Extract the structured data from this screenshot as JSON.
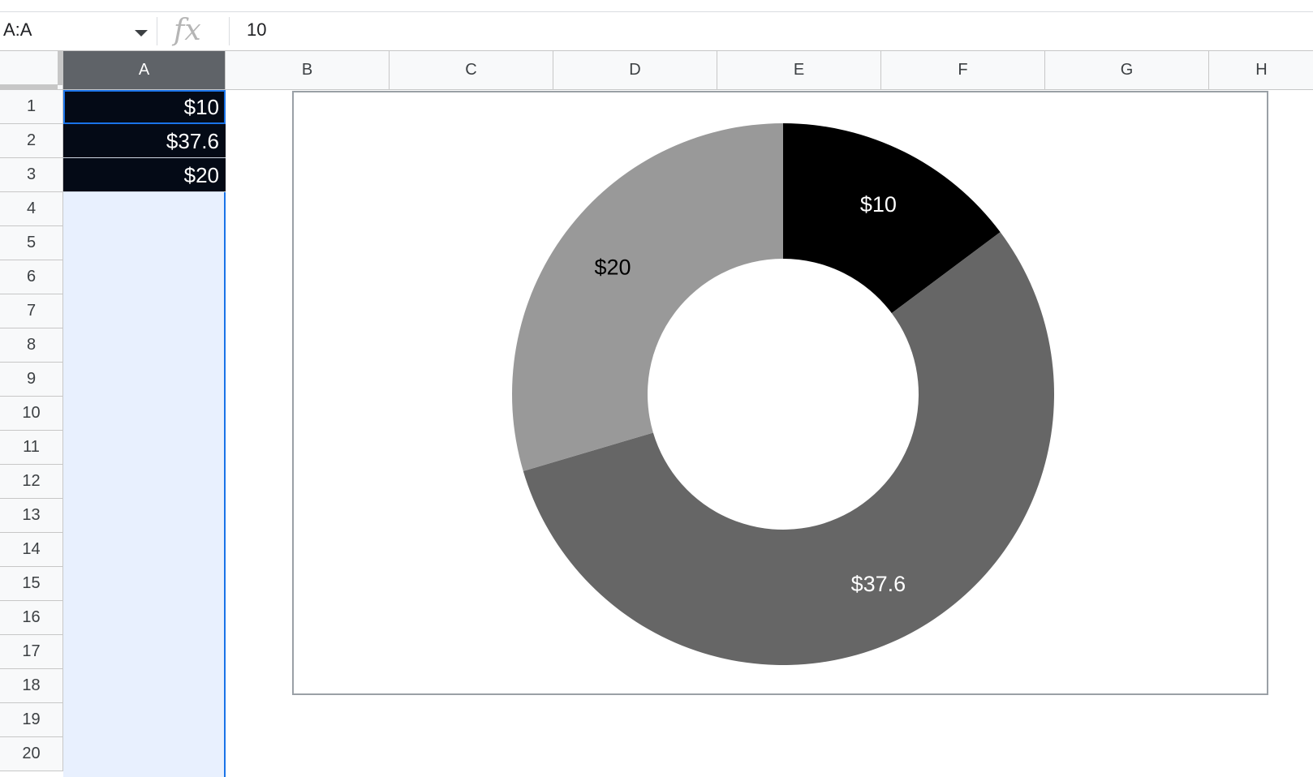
{
  "formula_bar": {
    "name_box": "A:A",
    "fx_label": "fx",
    "formula": "10"
  },
  "columns": [
    "A",
    "B",
    "C",
    "D",
    "E",
    "F",
    "G",
    "H"
  ],
  "selected_column": "A",
  "rows": [
    "1",
    "2",
    "3",
    "4",
    "5",
    "6",
    "7",
    "8",
    "9",
    "10",
    "11",
    "12",
    "13",
    "14",
    "15",
    "16",
    "17",
    "18",
    "19",
    "20"
  ],
  "cells": [
    {
      "ref": "A1",
      "value": "$10"
    },
    {
      "ref": "A2",
      "value": "$37.6"
    },
    {
      "ref": "A3",
      "value": "$20"
    }
  ],
  "chart_data": {
    "type": "pie",
    "donut": true,
    "categories": [
      "$10",
      "$37.6",
      "$20"
    ],
    "values": [
      10,
      37.6,
      20
    ],
    "labels": [
      "$10",
      "$37.6",
      "$20"
    ],
    "colors": [
      "#000000",
      "#666666",
      "#999999"
    ],
    "label_colors": [
      "#ffffff",
      "#ffffff",
      "#000000"
    ],
    "legend": "none"
  }
}
